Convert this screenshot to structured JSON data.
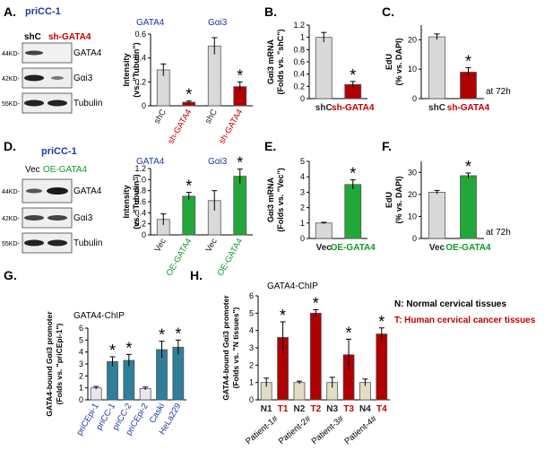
{
  "figure": {
    "blot_ab": {
      "top": "priCC-1",
      "lane1": "shC",
      "lane2": "sh-GATA4"
    },
    "blot_d": {
      "top": "priCC-1",
      "lane1": "Vec",
      "lane2": "OE-GATA4"
    },
    "mw_markers": {
      "m44": "44KD-",
      "m42": "42KD-",
      "m55": "55KD-"
    },
    "bands": {
      "gata4": "GATA4",
      "gai3": "Gαi3",
      "tubulin": "Tubulin"
    },
    "at72h": "at 72h",
    "chip_g_title": "GATA4-ChIP",
    "chip_h_title": "GATA4-ChIP",
    "legend_h": {
      "n": "N: Normal cervical tissues",
      "t": "T: Human cervical cancer tissues"
    }
  },
  "colors": {
    "gray_bar": "#d9d9d9",
    "red_bar": "#b00000",
    "dark_red_bar": "#8b1a1a",
    "green_bar": "#22a83a",
    "teal_bar": "#2f7f99",
    "light_purple_bar": "#e9e6f2",
    "beige_bar": "#e2dcc4",
    "blue_text": "#1f3a9e",
    "red_text": "#c00000",
    "green_text": "#119a2a"
  },
  "chart_data": [
    {
      "id": "A",
      "panel_label": "A.",
      "type": "bar",
      "title": "",
      "group_labels": [
        "GATA4",
        "Gαi3"
      ],
      "ylabel": "Intensity (vs. \"Tubulin\")",
      "ylim": [
        0,
        0.6
      ],
      "yticks": [
        "0",
        "0.2",
        "0.4",
        "0.6"
      ],
      "categories": [
        "shC",
        "sh-GATA4",
        "shC",
        "sh-GATA4"
      ],
      "values": [
        0.3,
        0.03,
        0.5,
        0.16
      ],
      "errors": [
        0.05,
        0.01,
        0.07,
        0.04
      ],
      "stars": [
        false,
        true,
        false,
        true
      ],
      "bar_colors": [
        "#d9d9d9",
        "#b00000",
        "#d9d9d9",
        "#b00000"
      ]
    },
    {
      "id": "B",
      "panel_label": "B.",
      "type": "bar",
      "ylabel": "Gαi3 mRNA (Folds vs. \"shC\")",
      "ylim": [
        0,
        1.2
      ],
      "yticks": [
        "0",
        "0.2",
        "0.4",
        "0.6",
        "0.8",
        "1",
        "1.2"
      ],
      "categories": [
        "shC",
        "sh-GATA4"
      ],
      "values": [
        1.0,
        0.23
      ],
      "errors": [
        0.08,
        0.05
      ],
      "stars": [
        false,
        true
      ],
      "bar_colors": [
        "#d9d9d9",
        "#b00000"
      ]
    },
    {
      "id": "C",
      "panel_label": "C.",
      "type": "bar",
      "ylabel": "EdU (% vs. DAPI)",
      "ylim": [
        0,
        25
      ],
      "yticks": [
        "0",
        "10",
        "20"
      ],
      "categories": [
        "shC",
        "sh-GATA4"
      ],
      "values": [
        21,
        9
      ],
      "errors": [
        1,
        1.5
      ],
      "stars": [
        false,
        true
      ],
      "bar_colors": [
        "#d9d9d9",
        "#b00000"
      ]
    },
    {
      "id": "D",
      "panel_label": "D.",
      "type": "bar",
      "group_labels": [
        "GATA4",
        "Gαi3"
      ],
      "ylabel": "Intensity (vs. \"Tubulin\")",
      "ylim": [
        0,
        1.2
      ],
      "yticks": [
        "0",
        "0.2",
        "0.4",
        "0.6",
        "0.8",
        "1.0",
        "1.2"
      ],
      "categories": [
        "Vec",
        "OE-GATA4",
        "Vec",
        "OE-GATA4"
      ],
      "values": [
        0.28,
        0.7,
        0.62,
        1.06
      ],
      "errors": [
        0.1,
        0.07,
        0.18,
        0.13
      ],
      "stars": [
        false,
        true,
        false,
        true
      ],
      "bar_colors": [
        "#d9d9d9",
        "#22a83a",
        "#d9d9d9",
        "#22a83a"
      ]
    },
    {
      "id": "E",
      "panel_label": "E.",
      "type": "bar",
      "ylabel": "Gαi3 mRNA (Folds vs. \"Vec\")",
      "ylim": [
        0,
        5
      ],
      "yticks": [
        "0",
        "1",
        "2",
        "3",
        "4",
        "5"
      ],
      "categories": [
        "Vec",
        "OE-GATA4"
      ],
      "values": [
        1.0,
        3.5
      ],
      "errors": [
        0.05,
        0.3
      ],
      "stars": [
        false,
        true
      ],
      "bar_colors": [
        "#d9d9d9",
        "#22a83a"
      ]
    },
    {
      "id": "F",
      "panel_label": "F.",
      "type": "bar",
      "ylabel": "EdU (% vs. DAPI)",
      "ylim": [
        0,
        35
      ],
      "yticks": [
        "0",
        "10",
        "20",
        "30"
      ],
      "categories": [
        "Vec",
        "OE-GATA4"
      ],
      "values": [
        21,
        28.5
      ],
      "errors": [
        0.8,
        1.2
      ],
      "stars": [
        false,
        true
      ],
      "bar_colors": [
        "#d9d9d9",
        "#22a83a"
      ]
    },
    {
      "id": "G",
      "panel_label": "G.",
      "type": "bar",
      "title": "GATA4-ChIP",
      "ylabel": "GATA4-bound Gαi3 promoter (Folds vs. \"priCEpi-1\")",
      "ylim": [
        0,
        6
      ],
      "yticks": [
        "0",
        "1",
        "2",
        "3",
        "4",
        "5",
        "6"
      ],
      "categories": [
        "priCEpi-1",
        "priCC-1",
        "priCC-2",
        "priCEpi-2",
        "Caski",
        "HeLa229"
      ],
      "values": [
        1.0,
        3.2,
        3.3,
        0.95,
        4.2,
        4.4
      ],
      "errors": [
        0.12,
        0.4,
        0.5,
        0.12,
        0.7,
        0.6
      ],
      "stars": [
        false,
        true,
        true,
        false,
        true,
        true
      ],
      "bar_colors": [
        "#e9e6f2",
        "#2f7f99",
        "#2f7f99",
        "#e9e6f2",
        "#2f7f99",
        "#2f7f99"
      ]
    },
    {
      "id": "H",
      "panel_label": "H.",
      "type": "bar",
      "title": "GATA4-ChIP",
      "ylabel": "GATA4-bound Gαi3 promoter (Folds vs. \"N tissues\")",
      "ylim": [
        0,
        6
      ],
      "yticks": [
        "0",
        "1",
        "2",
        "3",
        "4",
        "5",
        "6"
      ],
      "categories": [
        "N1",
        "T1",
        "N2",
        "T2",
        "N3",
        "T3",
        "N4",
        "T4"
      ],
      "values": [
        1.0,
        3.6,
        1.0,
        5.0,
        1.0,
        2.6,
        1.0,
        3.8
      ],
      "errors": [
        0.25,
        0.9,
        0.08,
        0.2,
        0.3,
        0.9,
        0.2,
        0.35
      ],
      "stars": [
        false,
        true,
        false,
        true,
        false,
        true,
        false,
        true
      ],
      "bar_colors": [
        "#e2dcc4",
        "#b00000",
        "#e2dcc4",
        "#b00000",
        "#e2dcc4",
        "#b00000",
        "#e2dcc4",
        "#b00000"
      ],
      "patients": [
        "Patient-1#",
        "Patient-2#",
        "Patient-3#",
        "Patient-4#"
      ]
    }
  ]
}
